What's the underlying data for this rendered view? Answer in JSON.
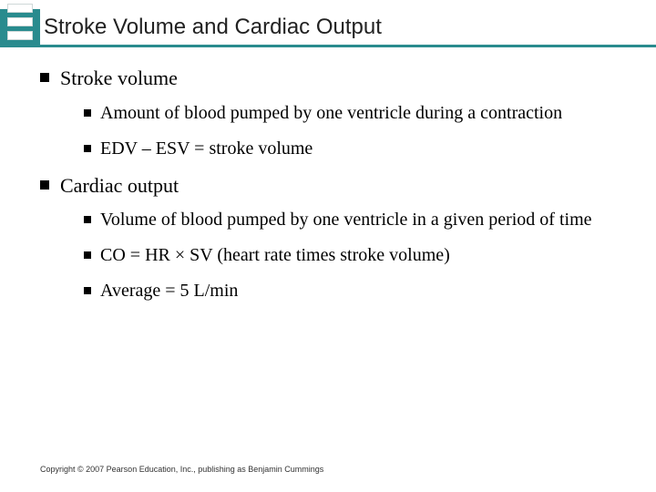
{
  "colors": {
    "accent": "#298b8e",
    "background": "#ffffff",
    "text": "#000000",
    "footer": "#333333"
  },
  "title": "Stroke Volume and Cardiac Output",
  "bullets": [
    {
      "text": "Stroke volume",
      "children": [
        {
          "text": "Amount of blood pumped by one ventricle during a contraction"
        },
        {
          "text": "EDV – ESV = stroke volume"
        }
      ]
    },
    {
      "text": "Cardiac output",
      "children": [
        {
          "text": "Volume of blood pumped by one ventricle in a given period of time"
        },
        {
          "text": "CO = HR × SV (heart rate times stroke volume)"
        },
        {
          "text": "Average = 5 L/min"
        }
      ]
    }
  ],
  "footer": "Copyright © 2007 Pearson Education, Inc., publishing as Benjamin Cummings"
}
